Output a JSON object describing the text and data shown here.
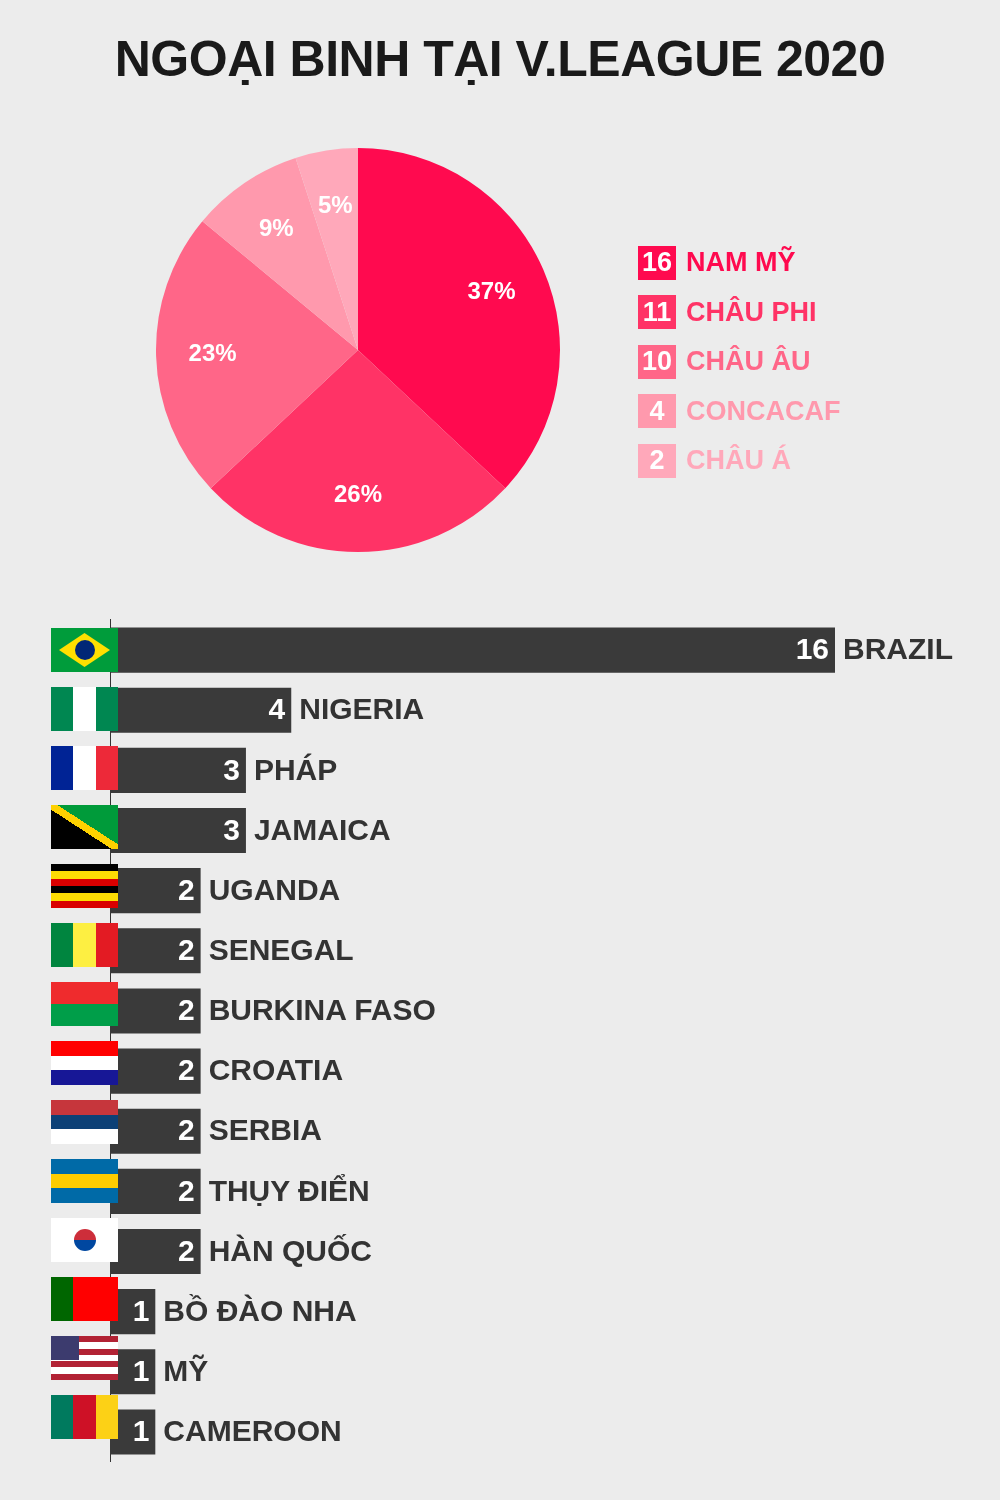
{
  "chart_data": [
    {
      "type": "pie",
      "title": "NGOẠI BINH TẠI V.LEAGUE 2020",
      "categories": [
        "NAM MỸ",
        "CHÂU PHI",
        "CHÂU ÂU",
        "CONCACAF",
        "CHÂU Á"
      ],
      "annotations": [
        "16",
        "11",
        "10",
        "4",
        "2"
      ],
      "values": [
        37,
        26,
        23,
        9,
        5
      ],
      "colors": [
        "#ff0a4f",
        "#ff3366",
        "#ff6688",
        "#ff99ad",
        "#ffa8ba"
      ],
      "value_labels": [
        "37%",
        "26%",
        "23%",
        "9%",
        "5%"
      ],
      "legend": "right"
    },
    {
      "type": "bar",
      "orientation": "horizontal",
      "categories": [
        "BRAZIL",
        "NIGERIA",
        "PHÁP",
        "JAMAICA",
        "UGANDA",
        "SENEGAL",
        "BURKINA FASO",
        "CROATIA",
        "SERBIA",
        "THỤY ĐIỂN",
        "HÀN QUỐC",
        "BỒ ĐÀO NHA",
        "MỸ",
        "CAMEROON"
      ],
      "values": [
        16,
        4,
        3,
        3,
        2,
        2,
        2,
        2,
        2,
        2,
        2,
        1,
        1,
        1
      ],
      "color": "#3a3a3a",
      "data_labels": true
    }
  ]
}
